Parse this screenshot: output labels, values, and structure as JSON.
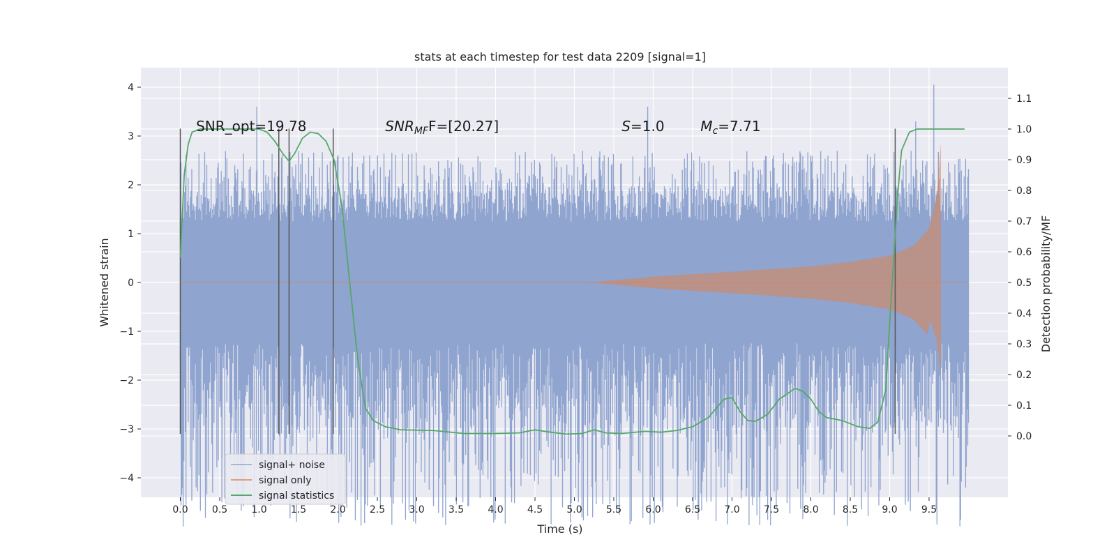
{
  "chart_data": {
    "type": "line",
    "title": "stats at each timestep for test data 2209 [signal=1]",
    "xlabel": "Time (s)",
    "ylabel": "Whitened strain",
    "y2label": "Detection probability/MF",
    "xlim": [
      -0.5,
      10.5
    ],
    "ylim": [
      -4.4,
      4.4
    ],
    "y2lim": [
      -0.2,
      1.2
    ],
    "xticks": [
      "0.0",
      "0.5",
      "1.0",
      "1.5",
      "2.0",
      "2.5",
      "3.0",
      "3.5",
      "4.0",
      "4.5",
      "5.0",
      "5.5",
      "6.0",
      "6.5",
      "7.0",
      "7.5",
      "8.0",
      "8.5",
      "9.0",
      "9.5"
    ],
    "yticks": [
      "4",
      "3",
      "2",
      "1",
      "0",
      "−1",
      "−2",
      "−3",
      "−4"
    ],
    "y2ticks": [
      "1.1",
      "1.0",
      "0.9",
      "0.8",
      "0.7",
      "0.6",
      "0.5",
      "0.4",
      "0.3",
      "0.2",
      "0.1",
      "0.0"
    ],
    "grid": true,
    "legend": {
      "placement": "lower-left",
      "entries": [
        "signal+ noise",
        "signal only",
        "signal statistics"
      ]
    },
    "colors": {
      "noise": "#8fa4cf",
      "signal": "#dd8452",
      "stats": "#55a868",
      "marker": "#555555",
      "plot_bg": "#eaeaf2"
    },
    "annotations": [
      {
        "text": "SNR_opt=19.78",
        "x": 0.2,
        "y": 3.1
      },
      {
        "text_main": "SNR",
        "text_sub": "MF",
        "text_rest": "F=[20.27]",
        "x": 2.6,
        "y": 3.1
      },
      {
        "text_main": "S",
        "text_rest": "=1.0",
        "x": 5.6,
        "y": 3.1
      },
      {
        "text_main": "M",
        "text_sub": "c",
        "text_rest": "=7.71",
        "x": 6.6,
        "y": 3.1
      }
    ],
    "vertical_markers_x": [
      0.0,
      1.25,
      1.38,
      1.94,
      9.07
    ],
    "vertical_markers_ylim": [
      -3.1,
      3.15
    ],
    "series": [
      {
        "name": "signal+ noise",
        "kind": "noise",
        "x_range": [
          0.0,
          10.0
        ],
        "core_band": 1.25,
        "typical_peak_range": [
          -2.5,
          2.7
        ],
        "extremes": [
          [
            0.53,
            -3.6
          ],
          [
            0.97,
            3.6
          ],
          [
            2.31,
            -3.4
          ],
          [
            5.93,
            3.6
          ],
          [
            6.57,
            -4.0
          ],
          [
            7.27,
            -3.8
          ],
          [
            9.56,
            4.05
          ],
          [
            9.33,
            3.3
          ]
        ]
      },
      {
        "name": "signal only",
        "kind": "chirp",
        "x_range": [
          5.2,
          9.65
        ],
        "envelope": [
          [
            5.2,
            0.0
          ],
          [
            6.0,
            0.12
          ],
          [
            7.0,
            0.22
          ],
          [
            8.0,
            0.33
          ],
          [
            8.5,
            0.42
          ],
          [
            9.0,
            0.55
          ],
          [
            9.3,
            0.75
          ],
          [
            9.5,
            1.1
          ],
          [
            9.6,
            1.8
          ],
          [
            9.65,
            2.85
          ]
        ]
      },
      {
        "name": "signal statistics",
        "kind": "line",
        "axis": "y2",
        "points": [
          [
            0.0,
            0.58
          ],
          [
            0.05,
            0.85
          ],
          [
            0.1,
            0.95
          ],
          [
            0.15,
            0.99
          ],
          [
            0.25,
            1.0
          ],
          [
            0.5,
            1.0
          ],
          [
            0.8,
            1.0
          ],
          [
            1.0,
            1.0
          ],
          [
            1.1,
            0.99
          ],
          [
            1.2,
            0.96
          ],
          [
            1.3,
            0.92
          ],
          [
            1.38,
            0.895
          ],
          [
            1.45,
            0.92
          ],
          [
            1.55,
            0.97
          ],
          [
            1.65,
            0.99
          ],
          [
            1.75,
            0.985
          ],
          [
            1.85,
            0.96
          ],
          [
            1.95,
            0.9
          ],
          [
            2.05,
            0.75
          ],
          [
            2.15,
            0.5
          ],
          [
            2.25,
            0.25
          ],
          [
            2.35,
            0.09
          ],
          [
            2.45,
            0.05
          ],
          [
            2.6,
            0.03
          ],
          [
            2.8,
            0.02
          ],
          [
            3.2,
            0.018
          ],
          [
            3.6,
            0.008
          ],
          [
            4.0,
            0.008
          ],
          [
            4.3,
            0.01
          ],
          [
            4.5,
            0.02
          ],
          [
            4.7,
            0.012
          ],
          [
            4.9,
            0.006
          ],
          [
            5.1,
            0.008
          ],
          [
            5.25,
            0.02
          ],
          [
            5.4,
            0.01
          ],
          [
            5.6,
            0.008
          ],
          [
            5.9,
            0.015
          ],
          [
            6.1,
            0.012
          ],
          [
            6.3,
            0.018
          ],
          [
            6.5,
            0.03
          ],
          [
            6.7,
            0.06
          ],
          [
            6.9,
            0.12
          ],
          [
            7.0,
            0.125
          ],
          [
            7.1,
            0.08
          ],
          [
            7.2,
            0.05
          ],
          [
            7.3,
            0.048
          ],
          [
            7.45,
            0.07
          ],
          [
            7.6,
            0.12
          ],
          [
            7.8,
            0.155
          ],
          [
            7.9,
            0.145
          ],
          [
            8.0,
            0.12
          ],
          [
            8.1,
            0.08
          ],
          [
            8.2,
            0.06
          ],
          [
            8.4,
            0.05
          ],
          [
            8.6,
            0.03
          ],
          [
            8.75,
            0.025
          ],
          [
            8.85,
            0.045
          ],
          [
            8.95,
            0.15
          ],
          [
            9.02,
            0.45
          ],
          [
            9.1,
            0.78
          ],
          [
            9.15,
            0.93
          ],
          [
            9.25,
            0.99
          ],
          [
            9.35,
            1.0
          ],
          [
            9.6,
            1.0
          ],
          [
            9.95,
            1.0
          ]
        ]
      }
    ]
  }
}
